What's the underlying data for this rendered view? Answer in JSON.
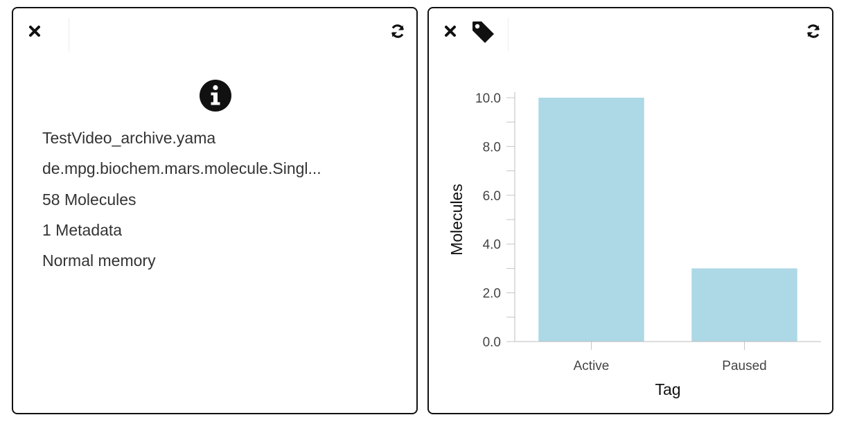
{
  "left_panel": {
    "close_icon": "close-icon",
    "refresh_icon": "refresh-icon",
    "info_icon": "info-circle-icon",
    "lines": [
      "TestVideo_archive.yama",
      "de.mpg.biochem.mars.molecule.Singl...",
      "58 Molecules",
      "1 Metadata",
      "Normal memory"
    ]
  },
  "right_panel": {
    "close_icon": "close-icon",
    "tag_icon": "tag-icon",
    "refresh_icon": "refresh-icon"
  },
  "chart_data": {
    "type": "bar",
    "categories": [
      "Active",
      "Paused"
    ],
    "values": [
      10,
      3
    ],
    "xlabel": "Tag",
    "ylabel": "Molecules",
    "ylim": [
      0,
      10
    ],
    "yticks": [
      "0.0",
      "2.0",
      "4.0",
      "6.0",
      "8.0",
      "10.0"
    ],
    "bar_color": "#add8e6",
    "grid": false
  }
}
